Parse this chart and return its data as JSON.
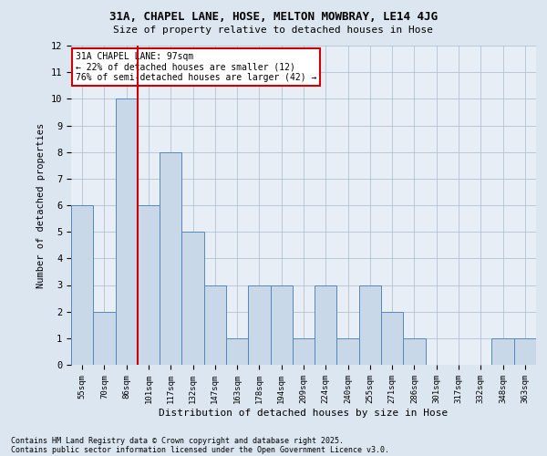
{
  "title_line1": "31A, CHAPEL LANE, HOSE, MELTON MOWBRAY, LE14 4JG",
  "title_line2": "Size of property relative to detached houses in Hose",
  "xlabel": "Distribution of detached houses by size in Hose",
  "ylabel": "Number of detached properties",
  "categories": [
    "55sqm",
    "70sqm",
    "86sqm",
    "101sqm",
    "117sqm",
    "132sqm",
    "147sqm",
    "163sqm",
    "178sqm",
    "194sqm",
    "209sqm",
    "224sqm",
    "240sqm",
    "255sqm",
    "271sqm",
    "286sqm",
    "301sqm",
    "317sqm",
    "332sqm",
    "348sqm",
    "363sqm"
  ],
  "values": [
    6,
    2,
    10,
    6,
    8,
    5,
    3,
    1,
    3,
    3,
    1,
    3,
    1,
    3,
    2,
    1,
    0,
    0,
    0,
    1,
    1
  ],
  "bar_color": "#c8d8e8",
  "bar_edge_color": "#5588bb",
  "vline_x": 2.5,
  "vline_color": "#cc0000",
  "ylim": [
    0,
    12
  ],
  "yticks": [
    0,
    1,
    2,
    3,
    4,
    5,
    6,
    7,
    8,
    9,
    10,
    11,
    12
  ],
  "annotation_text": "31A CHAPEL LANE: 97sqm\n← 22% of detached houses are smaller (12)\n76% of semi-detached houses are larger (42) →",
  "annotation_box_color": "#ffffff",
  "annotation_box_edge": "#cc0000",
  "footnote1": "Contains HM Land Registry data © Crown copyright and database right 2025.",
  "footnote2": "Contains public sector information licensed under the Open Government Licence v3.0.",
  "bg_color": "#dce6f0",
  "plot_bg_color": "#e8eef6"
}
